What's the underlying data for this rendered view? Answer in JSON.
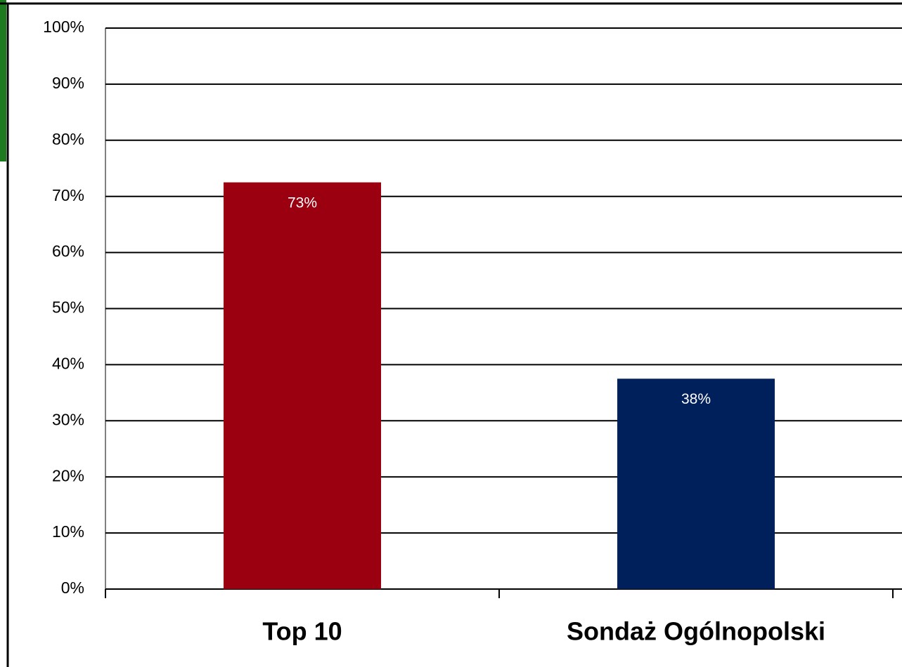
{
  "chart_data": {
    "type": "bar",
    "categories": [
      "Top 10",
      "Sondaż Ogólnopolski"
    ],
    "values": [
      72.5,
      37.5
    ],
    "value_labels": [
      "73%",
      "38%"
    ],
    "colors": [
      "#9b0010",
      "#00205b"
    ],
    "ylim": [
      0,
      100
    ],
    "yticks": [
      {
        "value": 0,
        "label": "0%"
      },
      {
        "value": 10,
        "label": "10%"
      },
      {
        "value": 20,
        "label": "20%"
      },
      {
        "value": 30,
        "label": "30%"
      },
      {
        "value": 40,
        "label": "40%"
      },
      {
        "value": 50,
        "label": "50%"
      },
      {
        "value": 60,
        "label": "60%"
      },
      {
        "value": 70,
        "label": "70%"
      },
      {
        "value": 80,
        "label": "80%"
      },
      {
        "value": 90,
        "label": "90%"
      },
      {
        "value": 100,
        "label": "100%"
      }
    ],
    "grid": true
  }
}
